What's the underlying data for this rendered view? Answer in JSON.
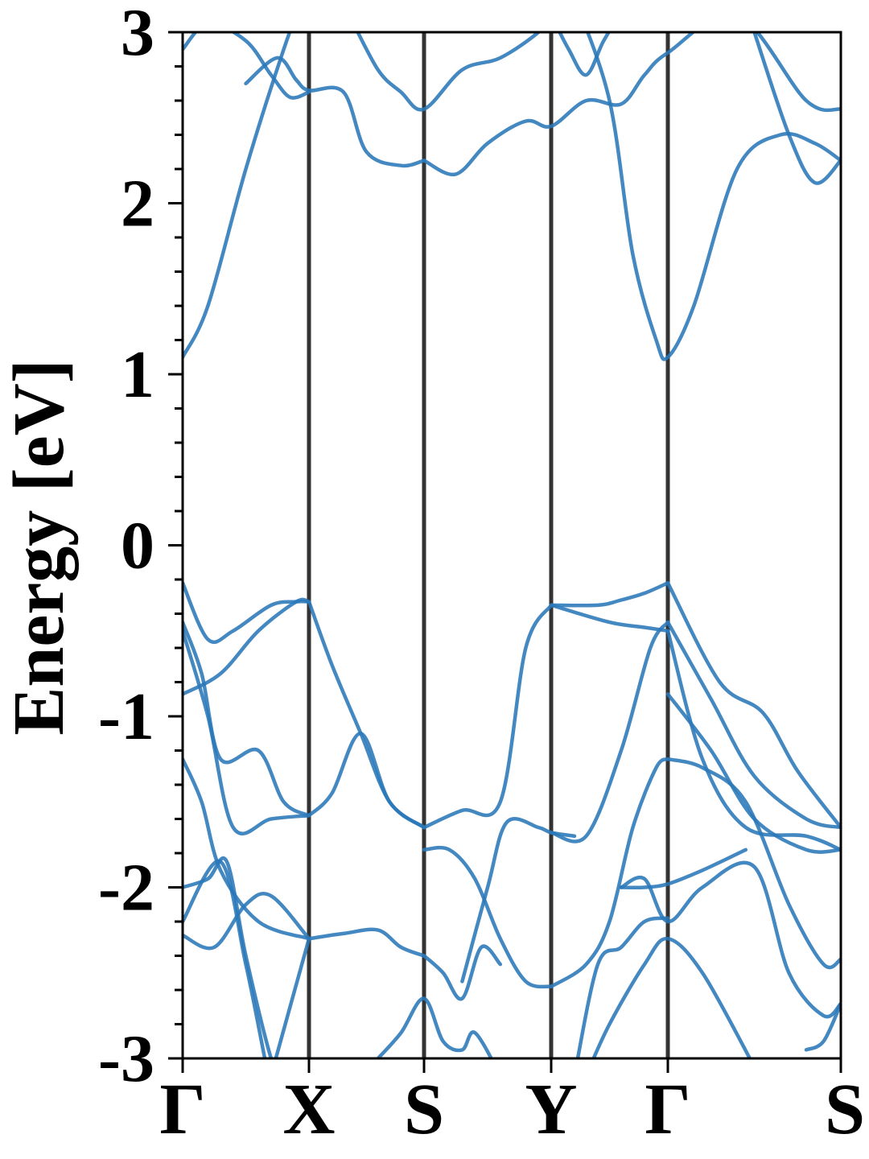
{
  "chart_data": {
    "type": "line",
    "title": "",
    "xlabel": "",
    "ylabel": "Energy [eV]",
    "ylim": [
      -3,
      3
    ],
    "y_ticks": [
      -3,
      -2,
      -1,
      0,
      1,
      2,
      3
    ],
    "y_tick_labels": [
      "-3",
      "-2",
      "-1",
      "0",
      "1",
      "2",
      "3"
    ],
    "x_ticks": [
      0,
      1,
      2,
      3,
      4,
      5
    ],
    "x_tick_labels": [
      "Γ",
      "X",
      "S",
      "Y",
      "Γ",
      "S"
    ],
    "xlim": [
      0,
      5
    ],
    "high_symmetry_k": [
      0,
      1,
      2,
      3,
      4,
      5
    ],
    "grid": false,
    "line_color": "#2a78b8",
    "vline_color": "#333333",
    "series": [
      {
        "x": [
          0,
          0.2,
          0.5,
          0.8,
          1.0
        ],
        "y": [
          1.1,
          1.4,
          2.2,
          2.9,
          3.3
        ]
      },
      {
        "x": [
          0,
          0.2,
          0.5,
          0.7,
          0.85,
          1.0
        ],
        "y": [
          2.9,
          3.05,
          2.95,
          2.75,
          2.62,
          2.65
        ]
      },
      {
        "x": [
          0.5,
          0.75,
          0.9,
          1.0,
          1.3,
          1.5,
          1.8,
          2.0
        ],
        "y": [
          2.7,
          2.85,
          2.72,
          2.66,
          2.65,
          2.3,
          2.22,
          2.25
        ]
      },
      {
        "x": [
          1.35,
          1.6,
          1.8,
          2.0,
          2.3,
          2.6,
          2.9,
          3.0
        ],
        "y": [
          3.1,
          2.78,
          2.65,
          2.55,
          2.78,
          2.85,
          3.0,
          3.1
        ]
      },
      {
        "x": [
          2.0,
          2.25,
          2.5,
          2.8,
          3.0,
          3.3,
          3.6,
          3.8,
          4.0,
          4.4,
          4.8,
          5.0
        ],
        "y": [
          2.25,
          2.17,
          2.35,
          2.48,
          2.45,
          2.6,
          2.58,
          2.75,
          2.88,
          3.1,
          2.6,
          2.55
        ]
      },
      {
        "x": [
          3.0,
          3.15,
          3.3,
          3.45,
          3.6,
          3.8
        ],
        "y": [
          3.1,
          2.9,
          2.75,
          2.95,
          3.1,
          3.2
        ]
      },
      {
        "x": [
          3.2,
          3.5,
          3.7,
          3.9,
          4.0,
          4.15,
          4.4,
          4.65,
          4.85,
          5.0
        ],
        "y": [
          3.2,
          2.6,
          1.7,
          1.2,
          1.1,
          1.4,
          2.2,
          2.4,
          2.35,
          2.25
        ]
      },
      {
        "x": [
          4.5,
          4.7,
          4.85,
          5.0
        ],
        "y": [
          3.0,
          2.4,
          2.12,
          2.25
        ]
      },
      {
        "x": [
          0,
          0.2,
          0.4,
          0.7,
          0.9,
          1.0
        ],
        "y": [
          -0.22,
          -0.55,
          -0.5,
          -0.35,
          -0.33,
          -0.33
        ]
      },
      {
        "x": [
          0,
          0.3,
          0.6,
          0.9,
          1.0
        ],
        "y": [
          -0.87,
          -0.75,
          -0.5,
          -0.33,
          -0.33
        ]
      },
      {
        "x": [
          1.0,
          1.2,
          1.45,
          1.7,
          2.0
        ],
        "y": [
          -0.33,
          -0.7,
          -1.1,
          -1.5,
          -1.65
        ]
      },
      {
        "x": [
          1.0,
          1.2,
          1.45,
          1.7,
          2.0
        ],
        "y": [
          -1.58,
          -1.45,
          -1.1,
          -1.5,
          -1.65
        ]
      },
      {
        "x": [
          0,
          0.15,
          0.3,
          0.6,
          0.8,
          1.0
        ],
        "y": [
          -0.45,
          -0.75,
          -1.25,
          -1.2,
          -1.5,
          -1.58
        ]
      },
      {
        "x": [
          0,
          0.2,
          0.4,
          0.7,
          1.0
        ],
        "y": [
          -0.5,
          -1.0,
          -1.65,
          -1.6,
          -1.58
        ]
      },
      {
        "x": [
          2.0,
          2.3,
          2.6,
          2.8,
          3.0
        ],
        "y": [
          -1.65,
          -1.55,
          -1.5,
          -0.6,
          -0.35
        ]
      },
      {
        "x": [
          2.0,
          2.2,
          2.4,
          2.6,
          2.8,
          3.0
        ],
        "y": [
          -1.78,
          -1.78,
          -1.95,
          -2.3,
          -2.55,
          -2.58
        ]
      },
      {
        "x": [
          2.3,
          2.5,
          2.65,
          2.9,
          3.0,
          3.2
        ],
        "y": [
          -2.55,
          -2.0,
          -1.62,
          -1.65,
          -1.68,
          -1.7
        ]
      },
      {
        "x": [
          3.0,
          3.4,
          3.6,
          3.8,
          4.0
        ],
        "y": [
          -0.35,
          -0.35,
          -0.32,
          -0.28,
          -0.22
        ]
      },
      {
        "x": [
          3.0,
          3.5,
          3.8,
          4.0
        ],
        "y": [
          -0.35,
          -0.45,
          -0.48,
          -0.5
        ]
      },
      {
        "x": [
          3.0,
          3.3,
          3.6,
          3.85,
          4.0
        ],
        "y": [
          -1.68,
          -1.7,
          -1.2,
          -0.6,
          -0.45
        ]
      },
      {
        "x": [
          3.0,
          3.3,
          3.5,
          3.7,
          3.9,
          4.0
        ],
        "y": [
          -2.58,
          -2.45,
          -2.2,
          -1.65,
          -1.3,
          -1.25
        ]
      },
      {
        "x": [
          4.0,
          4.3,
          4.55,
          4.75,
          5.0
        ],
        "y": [
          -0.22,
          -0.8,
          -0.98,
          -1.32,
          -1.65
        ]
      },
      {
        "x": [
          4.0,
          4.25,
          4.5,
          4.8,
          5.0
        ],
        "y": [
          -0.45,
          -0.9,
          -1.35,
          -1.6,
          -1.65
        ]
      },
      {
        "x": [
          4.0,
          4.25,
          4.5,
          4.8,
          5.0
        ],
        "y": [
          -0.87,
          -1.2,
          -1.6,
          -1.78,
          -1.78
        ]
      },
      {
        "x": [
          4.0,
          4.2,
          4.45,
          4.8,
          5.0
        ],
        "y": [
          -0.5,
          -1.25,
          -1.65,
          -1.7,
          -1.78
        ]
      },
      {
        "x": [
          4.0,
          4.2,
          4.45,
          4.7,
          4.9,
          5.0
        ],
        "y": [
          -1.25,
          -1.3,
          -1.5,
          -2.1,
          -2.45,
          -2.42
        ]
      },
      {
        "x": [
          0,
          0.15,
          0.3,
          0.6,
          1.0
        ],
        "y": [
          -1.25,
          -1.5,
          -1.9,
          -2.2,
          -2.3
        ]
      },
      {
        "x": [
          0,
          0.25,
          0.5,
          0.7,
          1.0
        ],
        "y": [
          -2.28,
          -2.35,
          -2.1,
          -2.05,
          -2.3
        ]
      },
      {
        "x": [
          0,
          0.2,
          0.35,
          0.5,
          0.7,
          0.8
        ],
        "y": [
          -2.0,
          -1.95,
          -1.85,
          -2.4,
          -3.0,
          -3.15
        ]
      },
      {
        "x": [
          0,
          0.3,
          0.5,
          0.65
        ],
        "y": [
          -2.2,
          -1.85,
          -2.45,
          -3.0
        ]
      },
      {
        "x": [
          0.7,
          0.85,
          1.0
        ],
        "y": [
          -3.1,
          -2.7,
          -2.3
        ]
      },
      {
        "x": [
          1.0,
          1.3,
          1.6,
          1.8,
          2.0
        ],
        "y": [
          -2.3,
          -2.27,
          -2.25,
          -2.35,
          -2.4
        ]
      },
      {
        "x": [
          2.0,
          2.15,
          2.3,
          2.45,
          2.6
        ],
        "y": [
          -2.4,
          -2.5,
          -2.65,
          -2.35,
          -2.45
        ]
      },
      {
        "x": [
          1.6,
          1.8,
          2.0,
          2.15,
          2.3,
          2.4,
          2.6
        ],
        "y": [
          -3.0,
          -2.85,
          -2.65,
          -2.9,
          -2.95,
          -2.85,
          -3.1
        ]
      },
      {
        "x": [
          3.2,
          3.4,
          3.6,
          3.8,
          4.0
        ],
        "y": [
          -3.1,
          -2.45,
          -2.35,
          -2.2,
          -2.18
        ]
      },
      {
        "x": [
          3.6,
          3.8,
          4.0,
          4.2,
          4.45
        ],
        "y": [
          -2.0,
          -2.0,
          -1.98,
          -1.9,
          -1.78
        ]
      },
      {
        "x": [
          3.6,
          3.8,
          4.0,
          4.2,
          4.5,
          4.7,
          4.9,
          5.0
        ],
        "y": [
          -2.0,
          -1.95,
          -2.2,
          -2.0,
          -1.88,
          -2.5,
          -2.75,
          -2.68
        ]
      },
      {
        "x": [
          3.3,
          3.5,
          3.8,
          4.0,
          4.2,
          4.5
        ],
        "y": [
          -3.1,
          -2.8,
          -2.45,
          -2.3,
          -2.5,
          -3.05
        ]
      },
      {
        "x": [
          4.8,
          4.9,
          5.0
        ],
        "y": [
          -2.95,
          -2.9,
          -2.68
        ]
      }
    ]
  }
}
